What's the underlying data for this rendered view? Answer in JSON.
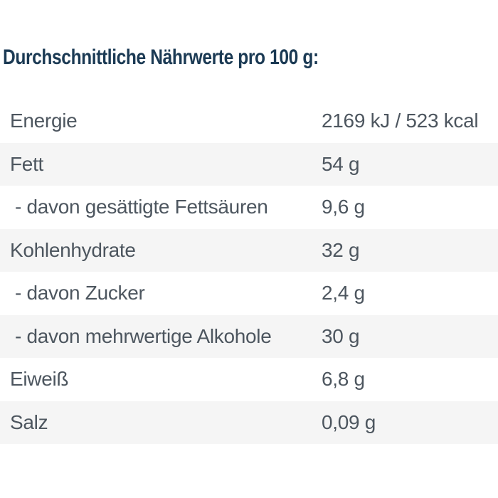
{
  "title": "Durchschnittliche Nährwerte pro 100 g:",
  "table": {
    "rows": [
      {
        "label": "Energie",
        "value": "2169 kJ / 523 kcal"
      },
      {
        "label": "Fett",
        "value": "54 g"
      },
      {
        "label": "- davon gesättigte Fettsäuren",
        "value": "9,6 g"
      },
      {
        "label": "Kohlenhydrate",
        "value": "32 g"
      },
      {
        "label": "- davon Zucker",
        "value": "2,4 g"
      },
      {
        "label": "- davon mehrwertige Alkohole",
        "value": "30 g"
      },
      {
        "label": "Eiweiß",
        "value": "6,8 g"
      },
      {
        "label": "Salz",
        "value": "0,09 g"
      }
    ]
  },
  "colors": {
    "title_text": "#1b3a54",
    "body_text": "#4d565f",
    "row_stripe": "#f5f5f5",
    "background": "#ffffff"
  }
}
